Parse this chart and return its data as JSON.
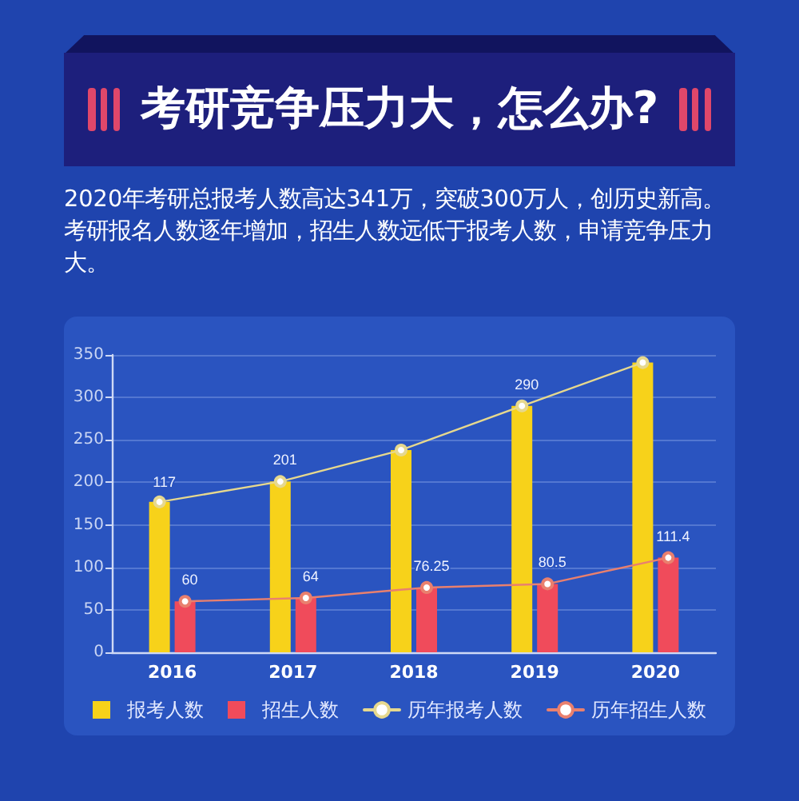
{
  "chart_data": {
    "type": "bar",
    "title": "考研竞争压力大，怎么办?",
    "subtitle": "2020年考研总报考人数高达341万，突破300万人，创历史新高。考研报名人数逐年增加，招生人数远低于报考人数，申请竞争压力大。",
    "categories": [
      "2016",
      "2017",
      "2018",
      "2019",
      "2020"
    ],
    "series": [
      {
        "name": "报考人数",
        "color": "#f7d21a",
        "values": [
          177,
          201,
          238,
          290,
          341
        ]
      },
      {
        "name": "招生人数",
        "color": "#f04b5b",
        "values": [
          60,
          64,
          76.25,
          80.5,
          111.4
        ]
      },
      {
        "name": "历年报考人数",
        "type": "line",
        "color": "#e6d88e",
        "values": [
          177,
          201,
          238,
          290,
          341
        ],
        "value_labels": [
          null,
          "201",
          null,
          "290",
          null
        ]
      },
      {
        "name": "历年招生人数",
        "type": "line",
        "color": "#e9806e",
        "values": [
          60,
          64,
          76.25,
          80.5,
          111.4
        ],
        "value_labels": [
          "60",
          "64",
          "76.25",
          "80.5",
          "111.4"
        ]
      }
    ],
    "annotations": [
      {
        "text": "117",
        "x": "2016",
        "y": 177
      }
    ],
    "ylim": [
      0,
      350
    ],
    "yticks": [
      0,
      50,
      100,
      150,
      200,
      250,
      300,
      350
    ],
    "grid": "y",
    "legend": "bottom",
    "marker": "circle"
  }
}
